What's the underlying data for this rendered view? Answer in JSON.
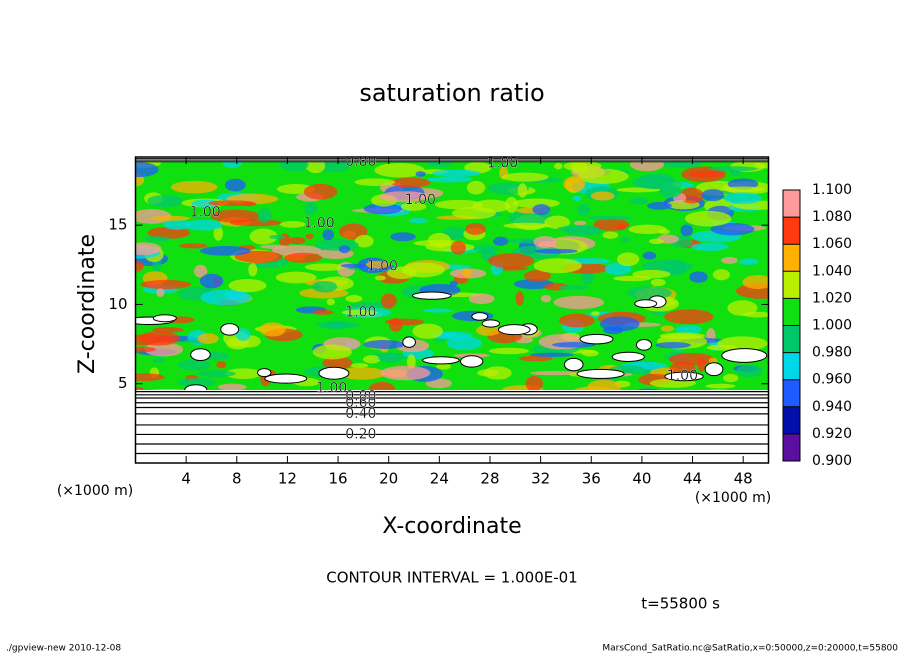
{
  "chart_data": {
    "type": "contour",
    "title": "saturation ratio",
    "xlabel": "X-coordinate",
    "ylabel": "Z-coordinate",
    "x_unit": "(×1000 m)",
    "y_unit": "(×1000 m)",
    "xlim": [
      0,
      50
    ],
    "xticks": [
      4,
      8,
      12,
      16,
      20,
      24,
      28,
      32,
      36,
      40,
      44,
      48
    ],
    "ylim": [
      0,
      19.3
    ],
    "yticks": [
      5,
      10,
      15
    ],
    "colorbar": {
      "lim": [
        0.9,
        1.1
      ],
      "ticks": [
        {
          "value": 0.9,
          "label": "0.900"
        },
        {
          "value": 0.92,
          "label": "0.920"
        },
        {
          "value": 0.94,
          "label": "0.940"
        },
        {
          "value": 0.96,
          "label": "0.960"
        },
        {
          "value": 0.98,
          "label": "0.980"
        },
        {
          "value": 1.0,
          "label": "1.000"
        },
        {
          "value": 1.02,
          "label": "1.020"
        },
        {
          "value": 1.04,
          "label": "1.040"
        },
        {
          "value": 1.06,
          "label": "1.060"
        },
        {
          "value": 1.08,
          "label": "1.080"
        },
        {
          "value": 1.1,
          "label": "1.100"
        }
      ],
      "colors": [
        "#5a0fa0",
        "#0010a8",
        "#1e5cff",
        "#00d8e8",
        "#00c86a",
        "#10e010",
        "#b8f000",
        "#ffb000",
        "#ff3a10",
        "#ff9a9a"
      ]
    },
    "contour_labels": [
      {
        "text": "0.80",
        "x": 17.8,
        "z": 19.0
      },
      {
        "text": "1.00",
        "x": 29.0,
        "z": 18.9
      },
      {
        "text": "1.00",
        "x": 5.5,
        "z": 15.8
      },
      {
        "text": "1.00",
        "x": 22.5,
        "z": 16.6
      },
      {
        "text": "1.00",
        "x": 14.5,
        "z": 15.1
      },
      {
        "text": "1.00",
        "x": 19.5,
        "z": 12.4
      },
      {
        "text": "1.00",
        "x": 17.8,
        "z": 9.5
      },
      {
        "text": "1.00",
        "x": 43.2,
        "z": 5.5
      },
      {
        "text": "1.00",
        "x": 15.5,
        "z": 4.7
      },
      {
        "text": "0.80",
        "x": 17.8,
        "z": 4.2
      },
      {
        "text": "0.60",
        "x": 17.8,
        "z": 3.8
      },
      {
        "text": "0.40",
        "x": 17.8,
        "z": 3.1
      },
      {
        "text": "0.20",
        "x": 17.8,
        "z": 1.8
      }
    ],
    "contour_interval": "CONTOUR INTERVAL = 1.000E-01",
    "time": "t=55800 s",
    "footer_left": "./gpview-new   2010-12-08",
    "footer_right": "MarsCond_SatRatio.nc@SatRatio,x=0:50000,z=0:20000,t=55800"
  }
}
